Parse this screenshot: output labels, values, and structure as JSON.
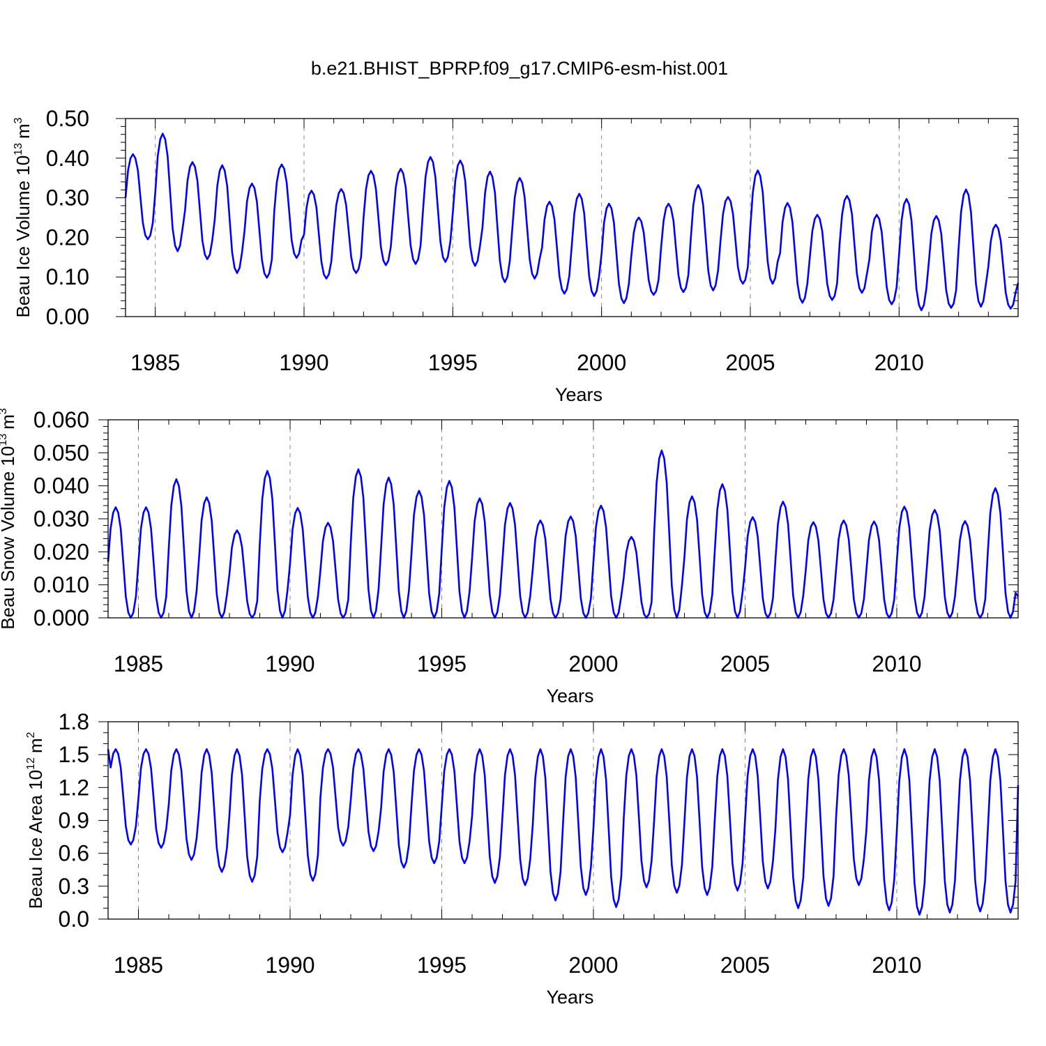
{
  "title": "b.e21.BHIST_BPRP.f09_g17.CMIP6-esm-hist.001",
  "chart_data": [
    {
      "type": "line",
      "name": "ice_volume",
      "ylabel": "Beau Ice Volume 10",
      "ylabel_exp": "13",
      "ylabel_unit": "m",
      "ylabel_unit_exp": "3",
      "xlabel": "Years",
      "xlim": [
        1984.0,
        2014.0
      ],
      "ylim": [
        0.0,
        0.5
      ],
      "xticks": [
        1985,
        1990,
        1995,
        2000,
        2005,
        2010
      ],
      "yticks": [
        "0.00",
        "0.10",
        "0.20",
        "0.30",
        "0.40",
        "0.50"
      ],
      "yminor": 0.02,
      "color": "#0000ff",
      "max_by_year": [
        0.41,
        0.462,
        0.39,
        0.382,
        0.336,
        0.384,
        0.318,
        0.322,
        0.368,
        0.373,
        0.403,
        0.394,
        0.366,
        0.35,
        0.29,
        0.31,
        0.285,
        0.25,
        0.285,
        0.332,
        0.302,
        0.369,
        0.287,
        0.257,
        0.305,
        0.257,
        0.297,
        0.254,
        0.321,
        0.232
      ],
      "min_by_year": [
        0.195,
        0.165,
        0.145,
        0.11,
        0.098,
        0.148,
        0.096,
        0.11,
        0.13,
        0.133,
        0.138,
        0.128,
        0.087,
        0.096,
        0.058,
        0.052,
        0.034,
        0.055,
        0.062,
        0.066,
        0.083,
        0.083,
        0.035,
        0.042,
        0.06,
        0.031,
        0.016,
        0.022,
        0.025,
        0.02
      ],
      "start_value": 0.3,
      "end_value": 0.085
    },
    {
      "type": "line",
      "name": "snow_volume",
      "ylabel": "Beau Snow Volume 10",
      "ylabel_exp": "13",
      "ylabel_unit": "m",
      "ylabel_unit_exp": "3",
      "xlabel": "Years",
      "xlim": [
        1984.0,
        2014.0
      ],
      "ylim": [
        0.0,
        0.06
      ],
      "xticks": [
        1985,
        1990,
        1995,
        2000,
        2005,
        2010
      ],
      "yticks": [
        "0.000",
        "0.010",
        "0.020",
        "0.030",
        "0.040",
        "0.050",
        "0.060"
      ],
      "yminor": 0.002,
      "color": "#0000ff",
      "max_by_year": [
        0.0335,
        0.0335,
        0.042,
        0.0365,
        0.0265,
        0.0445,
        0.0333,
        0.0288,
        0.045,
        0.0425,
        0.0385,
        0.0415,
        0.0362,
        0.0348,
        0.0295,
        0.0307,
        0.034,
        0.0245,
        0.0507,
        0.0368,
        0.0405,
        0.0305,
        0.0352,
        0.029,
        0.0295,
        0.0292,
        0.0337,
        0.0327,
        0.0293,
        0.0393
      ],
      "min_by_year": [
        0.0,
        0.0,
        0.0,
        0.0,
        0.0,
        0.0,
        0.0,
        0.0,
        0.0,
        0.0,
        0.0,
        0.0,
        0.0,
        0.0,
        0.0,
        0.0,
        0.0,
        0.0,
        0.0,
        0.0,
        0.0,
        0.0,
        0.0,
        0.0,
        0.0,
        0.0,
        0.0,
        0.0,
        0.0,
        0.0
      ],
      "start_value": 0.017,
      "end_value": 0.0065
    },
    {
      "type": "line",
      "name": "ice_area",
      "ylabel": "Beau Ice Area 10",
      "ylabel_exp": "12",
      "ylabel_unit": "m",
      "ylabel_unit_exp": "2",
      "xlabel": "Years",
      "xlim": [
        1984.0,
        2014.0
      ],
      "ylim": [
        0.0,
        1.8
      ],
      "xticks": [
        1985,
        1990,
        1995,
        2000,
        2005,
        2010
      ],
      "yticks": [
        "0.0",
        "0.3",
        "0.6",
        "0.9",
        "1.2",
        "1.5",
        "1.8"
      ],
      "yminor": 0.1,
      "color": "#0000ff",
      "max_by_year": [
        1.55,
        1.55,
        1.55,
        1.55,
        1.55,
        1.55,
        1.55,
        1.55,
        1.55,
        1.55,
        1.55,
        1.55,
        1.55,
        1.55,
        1.55,
        1.55,
        1.55,
        1.55,
        1.55,
        1.55,
        1.55,
        1.55,
        1.55,
        1.55,
        1.55,
        1.55,
        1.55,
        1.55,
        1.55,
        1.55
      ],
      "min_by_year": [
        0.68,
        0.65,
        0.54,
        0.43,
        0.34,
        0.61,
        0.35,
        0.67,
        0.62,
        0.47,
        0.51,
        0.51,
        0.33,
        0.31,
        0.17,
        0.22,
        0.11,
        0.29,
        0.24,
        0.22,
        0.26,
        0.28,
        0.1,
        0.12,
        0.31,
        0.08,
        0.04,
        0.06,
        0.07,
        0.06
      ],
      "start_value": 1.55,
      "end_value": 1.22
    }
  ]
}
